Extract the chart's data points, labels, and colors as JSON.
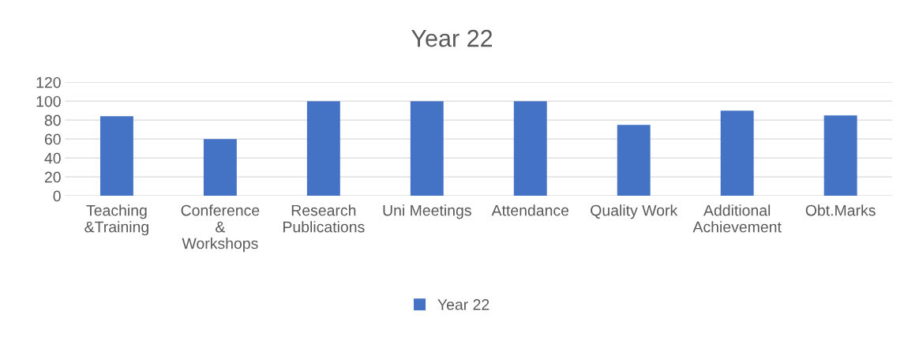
{
  "chart_data": {
    "type": "bar",
    "title": "Year 22",
    "categories": [
      "Teaching\n&Training",
      "Conference\n&\nWorkshops",
      "Research\nPublications",
      "Uni Meetings",
      "Attendance",
      "Quality Work",
      "Additional\nAchievement",
      "Obt.Marks"
    ],
    "series": [
      {
        "name": "Year 22",
        "color": "#4472c4",
        "values": [
          84,
          60,
          100,
          100,
          100,
          75,
          90,
          85
        ]
      }
    ],
    "ylim": [
      0,
      120
    ],
    "yticks": [
      0,
      20,
      40,
      60,
      80,
      100,
      120
    ],
    "grid": "y",
    "legend": "bottom"
  }
}
